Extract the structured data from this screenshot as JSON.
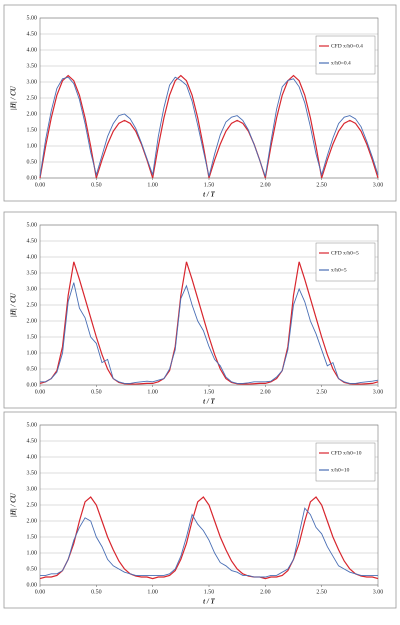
{
  "chart_data": [
    {
      "type": "line",
      "x_label": "t / T",
      "y_label": "|H| / CU",
      "x": [
        0,
        0.05,
        0.1,
        0.15,
        0.2,
        0.25,
        0.3,
        0.35,
        0.4,
        0.45,
        0.5,
        0.55,
        0.6,
        0.65,
        0.7,
        0.75,
        0.8,
        0.85,
        0.9,
        0.95,
        1,
        1.05,
        1.1,
        1.15,
        1.2,
        1.25,
        1.3,
        1.35,
        1.4,
        1.45,
        1.5,
        1.55,
        1.6,
        1.65,
        1.7,
        1.75,
        1.8,
        1.85,
        1.9,
        1.95,
        2,
        2.05,
        2.1,
        2.15,
        2.2,
        2.25,
        2.3,
        2.35,
        2.4,
        2.45,
        2.5,
        2.55,
        2.6,
        2.65,
        2.7,
        2.75,
        2.8,
        2.85,
        2.9,
        2.95,
        3
      ],
      "series": [
        {
          "name": "CFD x/h0=0.4",
          "color": "#d8262e",
          "values": [
            0,
            0.99,
            1.88,
            2.59,
            3.04,
            3.2,
            3.04,
            2.59,
            1.88,
            0.99,
            0,
            0.56,
            1.06,
            1.46,
            1.71,
            1.8,
            1.71,
            1.46,
            1.06,
            0.56,
            0,
            0.99,
            1.88,
            2.59,
            3.04,
            3.2,
            3.04,
            2.59,
            1.88,
            0.99,
            0,
            0.56,
            1.06,
            1.46,
            1.71,
            1.8,
            1.71,
            1.46,
            1.06,
            0.56,
            0,
            0.99,
            1.88,
            2.59,
            3.04,
            3.2,
            3.04,
            2.59,
            1.88,
            0.99,
            0,
            0.56,
            1.06,
            1.46,
            1.71,
            1.8,
            1.71,
            1.46,
            1.06,
            0.56,
            0
          ]
        },
        {
          "name": "x/h0=0.4",
          "color": "#4a6fb5",
          "values": [
            0.05,
            1.2,
            2.1,
            2.8,
            3.1,
            3.15,
            2.95,
            2.45,
            1.7,
            0.8,
            0.1,
            0.7,
            1.3,
            1.7,
            1.95,
            2.0,
            1.85,
            1.55,
            1.1,
            0.6,
            0.1,
            1.3,
            2.2,
            2.9,
            3.15,
            3.05,
            2.9,
            2.4,
            1.65,
            0.85,
            0.05,
            0.75,
            1.35,
            1.75,
            1.9,
            1.95,
            1.8,
            1.5,
            1.05,
            0.55,
            0.05,
            1.15,
            2.15,
            2.85,
            3.05,
            3.1,
            2.85,
            2.35,
            1.6,
            0.75,
            0.1,
            0.7,
            1.25,
            1.7,
            1.9,
            1.95,
            1.85,
            1.6,
            1.15,
            0.65,
            0.1
          ]
        }
      ],
      "xlim": [
        0,
        3
      ],
      "ylim": [
        0,
        5
      ],
      "xticks": [
        {
          "value": 0,
          "label": "0.00"
        },
        {
          "value": 0.5,
          "label": "0.50"
        },
        {
          "value": 1,
          "label": "1.00"
        },
        {
          "value": 1.5,
          "label": "1.50"
        },
        {
          "value": 2,
          "label": "2.00"
        },
        {
          "value": 2.5,
          "label": "2.50"
        },
        {
          "value": 3,
          "label": "3.00"
        }
      ],
      "yticks": [
        {
          "value": 0,
          "label": "0.00"
        },
        {
          "value": 0.5,
          "label": "0.50"
        },
        {
          "value": 1,
          "label": "1.00"
        },
        {
          "value": 1.5,
          "label": "1.50"
        },
        {
          "value": 2,
          "label": "2.00"
        },
        {
          "value": 2.5,
          "label": "2.50"
        },
        {
          "value": 3,
          "label": "3.00"
        },
        {
          "value": 3.5,
          "label": "3.50"
        },
        {
          "value": 4,
          "label": "4.00"
        },
        {
          "value": 4.5,
          "label": "4.50"
        },
        {
          "value": 5,
          "label": "5.00"
        }
      ],
      "grid": true
    },
    {
      "type": "line",
      "x_label": "t / T",
      "y_label": "|H| / CU",
      "x": [
        0,
        0.05,
        0.1,
        0.15,
        0.2,
        0.25,
        0.3,
        0.35,
        0.4,
        0.45,
        0.5,
        0.55,
        0.6,
        0.65,
        0.7,
        0.75,
        0.8,
        0.85,
        0.9,
        0.95,
        1,
        1.05,
        1.1,
        1.15,
        1.2,
        1.25,
        1.3,
        1.35,
        1.4,
        1.45,
        1.5,
        1.55,
        1.6,
        1.65,
        1.7,
        1.75,
        1.8,
        1.85,
        1.9,
        1.95,
        2,
        2.05,
        2.1,
        2.15,
        2.2,
        2.25,
        2.3,
        2.35,
        2.4,
        2.45,
        2.5,
        2.55,
        2.6,
        2.65,
        2.7,
        2.75,
        2.8,
        2.85,
        2.9,
        2.95,
        3
      ],
      "series": [
        {
          "name": "CFD x/h0=5",
          "color": "#d8262e",
          "values": [
            0.05,
            0.1,
            0.2,
            0.45,
            1.2,
            2.8,
            3.85,
            3.3,
            2.7,
            2.1,
            1.5,
            0.95,
            0.5,
            0.2,
            0.08,
            0.04,
            0.03,
            0.03,
            0.04,
            0.05,
            0.05,
            0.1,
            0.2,
            0.45,
            1.2,
            2.8,
            3.85,
            3.3,
            2.7,
            2.1,
            1.5,
            0.95,
            0.5,
            0.2,
            0.08,
            0.04,
            0.03,
            0.03,
            0.04,
            0.05,
            0.05,
            0.1,
            0.2,
            0.45,
            1.2,
            2.8,
            3.85,
            3.3,
            2.7,
            2.1,
            1.5,
            0.95,
            0.5,
            0.2,
            0.08,
            0.04,
            0.03,
            0.03,
            0.04,
            0.05,
            0.1
          ]
        },
        {
          "name": "x/h0=5",
          "color": "#4a6fb5",
          "values": [
            0.1,
            0.1,
            0.2,
            0.4,
            1.0,
            2.6,
            3.2,
            2.4,
            2.1,
            1.5,
            1.3,
            0.7,
            0.8,
            0.2,
            0.1,
            0.05,
            0.05,
            0.08,
            0.1,
            0.12,
            0.1,
            0.15,
            0.2,
            0.5,
            1.1,
            2.7,
            3.1,
            2.5,
            2.0,
            1.7,
            1.2,
            0.8,
            0.6,
            0.25,
            0.1,
            0.05,
            0.05,
            0.07,
            0.1,
            0.1,
            0.1,
            0.12,
            0.25,
            0.45,
            1.1,
            2.5,
            3.0,
            2.6,
            2.0,
            1.6,
            1.1,
            0.6,
            0.7,
            0.2,
            0.1,
            0.05,
            0.05,
            0.08,
            0.1,
            0.12,
            0.15
          ]
        }
      ],
      "xlim": [
        0,
        3
      ],
      "ylim": [
        0,
        5
      ],
      "xticks": [
        {
          "value": 0,
          "label": "0.00"
        },
        {
          "value": 0.5,
          "label": "0.50"
        },
        {
          "value": 1,
          "label": "1.00"
        },
        {
          "value": 1.5,
          "label": "1.50"
        },
        {
          "value": 2,
          "label": "2.00"
        },
        {
          "value": 2.5,
          "label": "2.50"
        },
        {
          "value": 3,
          "label": "3.00"
        }
      ],
      "yticks": [
        {
          "value": 0,
          "label": "0.00"
        },
        {
          "value": 0.5,
          "label": "0.50"
        },
        {
          "value": 1,
          "label": "1.00"
        },
        {
          "value": 1.5,
          "label": "1.50"
        },
        {
          "value": 2,
          "label": "2.00"
        },
        {
          "value": 2.5,
          "label": "2.50"
        },
        {
          "value": 3,
          "label": "3.00"
        },
        {
          "value": 3.5,
          "label": "3.50"
        },
        {
          "value": 4,
          "label": "4.00"
        },
        {
          "value": 4.5,
          "label": "4.50"
        },
        {
          "value": 5,
          "label": "5.00"
        }
      ],
      "grid": true
    },
    {
      "type": "line",
      "x_label": "t / T",
      "y_label": "|H| / CU",
      "x": [
        0,
        0.05,
        0.1,
        0.15,
        0.2,
        0.25,
        0.3,
        0.35,
        0.4,
        0.45,
        0.5,
        0.55,
        0.6,
        0.65,
        0.7,
        0.75,
        0.8,
        0.85,
        0.9,
        0.95,
        1,
        1.05,
        1.1,
        1.15,
        1.2,
        1.25,
        1.3,
        1.35,
        1.4,
        1.45,
        1.5,
        1.55,
        1.6,
        1.65,
        1.7,
        1.75,
        1.8,
        1.85,
        1.9,
        1.95,
        2,
        2.05,
        2.1,
        2.15,
        2.2,
        2.25,
        2.3,
        2.35,
        2.4,
        2.45,
        2.5,
        2.55,
        2.6,
        2.65,
        2.7,
        2.75,
        2.8,
        2.85,
        2.9,
        2.95,
        3
      ],
      "series": [
        {
          "name": "CFD x/h0=10",
          "color": "#d8262e",
          "values": [
            0.2,
            0.25,
            0.25,
            0.3,
            0.45,
            0.8,
            1.3,
            2.0,
            2.6,
            2.75,
            2.5,
            2.0,
            1.5,
            1.1,
            0.75,
            0.5,
            0.35,
            0.28,
            0.25,
            0.25,
            0.2,
            0.25,
            0.25,
            0.3,
            0.45,
            0.8,
            1.3,
            2.0,
            2.6,
            2.75,
            2.5,
            2.0,
            1.5,
            1.1,
            0.75,
            0.5,
            0.35,
            0.28,
            0.25,
            0.25,
            0.2,
            0.25,
            0.25,
            0.3,
            0.45,
            0.8,
            1.3,
            2.0,
            2.6,
            2.75,
            2.5,
            2.0,
            1.5,
            1.1,
            0.75,
            0.5,
            0.35,
            0.28,
            0.25,
            0.25,
            0.2
          ]
        },
        {
          "name": "x/h0=10",
          "color": "#4a6fb5",
          "values": [
            0.3,
            0.3,
            0.35,
            0.35,
            0.45,
            0.8,
            1.4,
            1.8,
            2.1,
            2.0,
            1.5,
            1.2,
            0.8,
            0.6,
            0.5,
            0.4,
            0.35,
            0.3,
            0.3,
            0.3,
            0.3,
            0.3,
            0.3,
            0.35,
            0.5,
            0.9,
            1.5,
            2.2,
            1.9,
            1.7,
            1.4,
            1.0,
            0.7,
            0.6,
            0.45,
            0.4,
            0.3,
            0.3,
            0.25,
            0.25,
            0.25,
            0.3,
            0.3,
            0.4,
            0.5,
            0.8,
            1.6,
            2.4,
            2.2,
            1.8,
            1.6,
            1.2,
            0.9,
            0.6,
            0.5,
            0.4,
            0.35,
            0.3,
            0.3,
            0.3,
            0.3
          ]
        }
      ],
      "xlim": [
        0,
        3
      ],
      "ylim": [
        0,
        5
      ],
      "xticks": [
        {
          "value": 0,
          "label": "0.00"
        },
        {
          "value": 0.5,
          "label": "0.50"
        },
        {
          "value": 1,
          "label": "1.00"
        },
        {
          "value": 1.5,
          "label": "1.50"
        },
        {
          "value": 2,
          "label": "2.00"
        },
        {
          "value": 2.5,
          "label": "2.50"
        },
        {
          "value": 3,
          "label": "3.00"
        }
      ],
      "yticks": [
        {
          "value": 0,
          "label": "0.00"
        },
        {
          "value": 0.5,
          "label": "0.50"
        },
        {
          "value": 1,
          "label": "1.00"
        },
        {
          "value": 1.5,
          "label": "1.50"
        },
        {
          "value": 2,
          "label": "2.00"
        },
        {
          "value": 2.5,
          "label": "2.50"
        },
        {
          "value": 3,
          "label": "3.00"
        },
        {
          "value": 3.5,
          "label": "3.50"
        },
        {
          "value": 4,
          "label": "4.00"
        },
        {
          "value": 4.5,
          "label": "4.50"
        },
        {
          "value": 5,
          "label": "5.00"
        }
      ],
      "grid": true
    }
  ]
}
